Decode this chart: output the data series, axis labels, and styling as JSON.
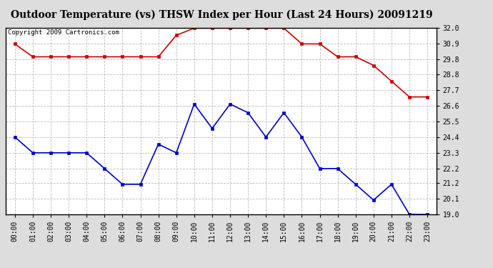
{
  "title": "Outdoor Temperature (vs) THSW Index per Hour (Last 24 Hours) 20091219",
  "copyright_text": "Copyright 2009 Cartronics.com",
  "x_labels": [
    "00:00",
    "01:00",
    "02:00",
    "03:00",
    "04:00",
    "05:00",
    "06:00",
    "07:00",
    "08:00",
    "09:00",
    "10:00",
    "11:00",
    "12:00",
    "13:00",
    "14:00",
    "15:00",
    "16:00",
    "17:00",
    "18:00",
    "19:00",
    "20:00",
    "21:00",
    "22:00",
    "23:00"
  ],
  "red_data": [
    30.9,
    30.0,
    30.0,
    30.0,
    30.0,
    30.0,
    30.0,
    30.0,
    30.0,
    31.5,
    32.0,
    32.0,
    32.0,
    32.0,
    32.0,
    32.0,
    30.9,
    30.9,
    30.0,
    30.0,
    29.4,
    28.3,
    27.2,
    27.2
  ],
  "blue_data": [
    24.4,
    23.3,
    23.3,
    23.3,
    23.3,
    22.2,
    21.1,
    21.1,
    23.9,
    23.3,
    26.7,
    25.0,
    26.7,
    26.1,
    24.4,
    26.1,
    24.4,
    22.2,
    22.2,
    21.1,
    20.0,
    21.1,
    19.0,
    19.0
  ],
  "ylim": [
    19.0,
    32.0
  ],
  "yticks": [
    19.0,
    20.1,
    21.2,
    22.2,
    23.3,
    24.4,
    25.5,
    26.6,
    27.7,
    28.8,
    29.8,
    30.9,
    32.0
  ],
  "red_color": "#cc0000",
  "blue_color": "#0000cc",
  "grid_color": "#bbbbbb",
  "bg_color": "#ffffff",
  "outer_bg": "#dddddd",
  "title_fontsize": 10,
  "tick_fontsize": 7,
  "copyright_fontsize": 6.5
}
